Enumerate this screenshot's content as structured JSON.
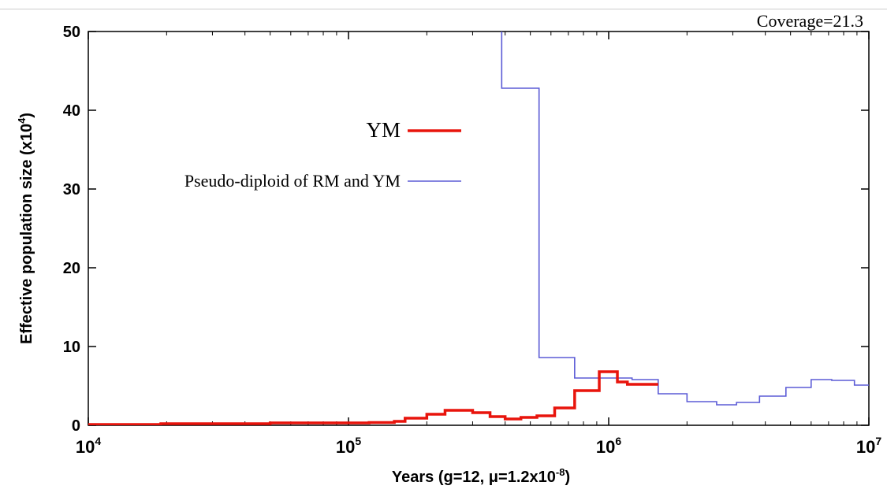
{
  "chart_data": {
    "type": "line",
    "xscale": "log",
    "xlim": [
      10000,
      10000000
    ],
    "ylim": [
      0,
      50
    ],
    "grid": false,
    "legend_position": "upper-left",
    "annotation": "Coverage=21.3",
    "xlabel_parts": {
      "base": "Years (g=12, ",
      "mu": "μ",
      "mid": "=1.2x10",
      "exp": "-8",
      "end": ")"
    },
    "ylabel_parts": {
      "base": "Effective population size (x10",
      "exp": "4",
      "end": ")"
    },
    "x_ticks": [
      {
        "value": 10000,
        "base": "10",
        "exp": "4"
      },
      {
        "value": 100000,
        "base": "10",
        "exp": "5"
      },
      {
        "value": 1000000,
        "base": "10",
        "exp": "6"
      },
      {
        "value": 10000000,
        "base": "10",
        "exp": "7"
      }
    ],
    "y_ticks": [
      {
        "value": 0,
        "label": "0"
      },
      {
        "value": 10,
        "label": "10"
      },
      {
        "value": 20,
        "label": "20"
      },
      {
        "value": 30,
        "label": "30"
      },
      {
        "value": 40,
        "label": "40"
      },
      {
        "value": 50,
        "label": "50"
      }
    ],
    "series": [
      {
        "name": "YM",
        "color": "#e8140c",
        "step": "post",
        "x": [
          10000,
          19000,
          50000,
          120000,
          150000,
          165000,
          200000,
          235000,
          260000,
          300000,
          350000,
          400000,
          460000,
          530000,
          620000,
          740000,
          920000,
          1080000,
          1180000,
          1550000
        ],
        "y": [
          0.1,
          0.2,
          0.3,
          0.35,
          0.5,
          0.9,
          1.4,
          1.9,
          1.9,
          1.6,
          1.1,
          0.8,
          1.0,
          1.2,
          2.2,
          4.4,
          6.8,
          5.5,
          5.2,
          5.2
        ]
      },
      {
        "name": "Pseudo-diploid of RM and YM",
        "color": "#5b5bd6",
        "step": "post",
        "x": [
          388000,
          388000,
          540000,
          740000,
          1230000,
          1550000,
          2000000,
          2600000,
          3100000,
          3800000,
          4800000,
          6000000,
          7200000,
          8800000,
          10000000
        ],
        "y": [
          50,
          42.8,
          8.6,
          6.0,
          5.8,
          4.0,
          3.0,
          2.6,
          2.9,
          3.7,
          4.8,
          5.8,
          5.7,
          5.1,
          5.1
        ]
      }
    ]
  }
}
